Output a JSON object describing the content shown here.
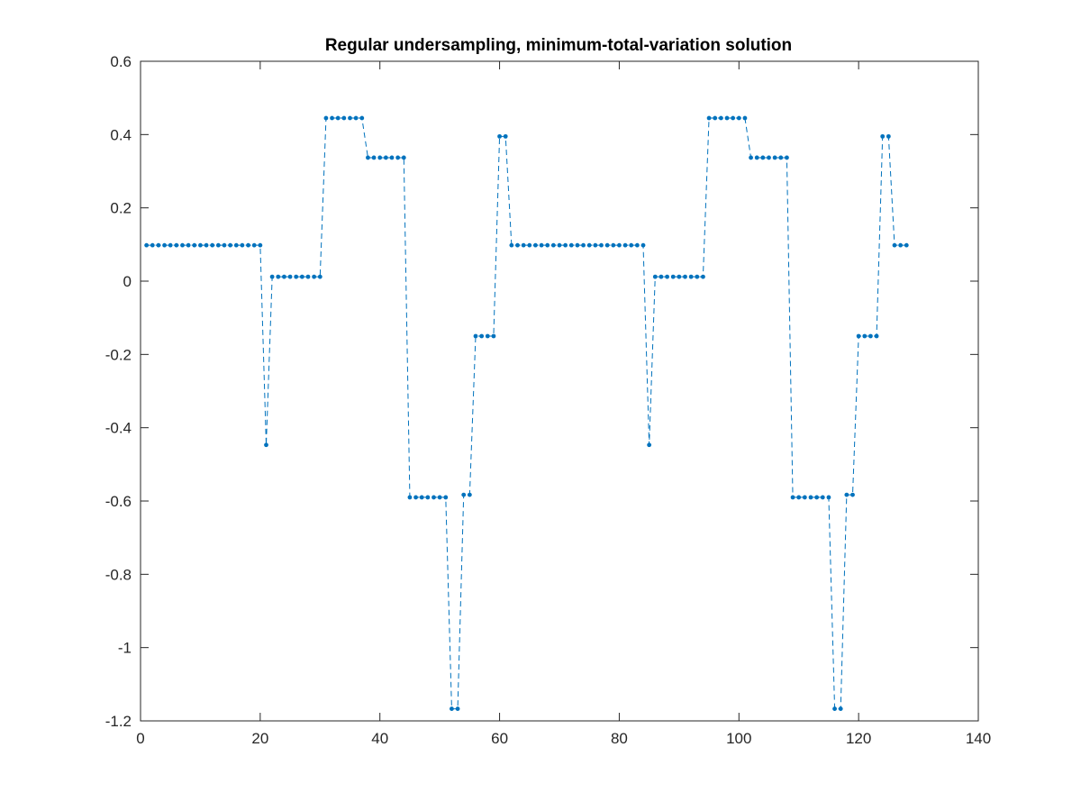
{
  "chart_data": {
    "type": "line",
    "title": "Regular undersampling, minimum-total-variation solution",
    "xlabel": "",
    "ylabel": "",
    "xlim": [
      0,
      140
    ],
    "ylim": [
      -1.2,
      0.6
    ],
    "xticks": [
      0,
      20,
      40,
      60,
      80,
      100,
      120,
      140
    ],
    "yticks": [
      -1.2,
      -1,
      -0.8,
      -0.6,
      -0.4,
      -0.2,
      0,
      0.2,
      0.4,
      0.6
    ],
    "xtick_labels": [
      "0",
      "20",
      "40",
      "60",
      "80",
      "100",
      "120",
      "140"
    ],
    "ytick_labels": [
      "-1.2",
      "-1",
      "-0.8",
      "-0.6",
      "-0.4",
      "-0.2",
      "0",
      "0.2",
      "0.4",
      "0.6"
    ],
    "grid": false,
    "line_style": "dashed",
    "marker": "dot",
    "color": "#0072BD",
    "series": [
      {
        "x": [
          1,
          2,
          3,
          4,
          5,
          6,
          7,
          8,
          9,
          10,
          11,
          12,
          13,
          14,
          15,
          16,
          17,
          18,
          19,
          20,
          21,
          22,
          23,
          24,
          25,
          26,
          27,
          28,
          29,
          30,
          31,
          32,
          33,
          34,
          35,
          36,
          37,
          38,
          39,
          40,
          41,
          42,
          43,
          44,
          45,
          46,
          47,
          48,
          49,
          50,
          51,
          52,
          53,
          54,
          55,
          56,
          57,
          58,
          59,
          60,
          61,
          62,
          63,
          64,
          65,
          66,
          67,
          68,
          69,
          70,
          71,
          72,
          73,
          74,
          75,
          76,
          77,
          78,
          79,
          80,
          81,
          82,
          83,
          84,
          85,
          86,
          87,
          88,
          89,
          90,
          91,
          92,
          93,
          94,
          95,
          96,
          97,
          98,
          99,
          100,
          101,
          102,
          103,
          104,
          105,
          106,
          107,
          108,
          109,
          110,
          111,
          112,
          113,
          114,
          115,
          116,
          117,
          118,
          119,
          120,
          121,
          122,
          123,
          124,
          125,
          126,
          127,
          128
        ],
        "y": [
          0.098,
          0.098,
          0.098,
          0.098,
          0.098,
          0.098,
          0.098,
          0.098,
          0.098,
          0.098,
          0.098,
          0.098,
          0.098,
          0.098,
          0.098,
          0.098,
          0.098,
          0.098,
          0.098,
          0.098,
          -0.447,
          0.012,
          0.012,
          0.012,
          0.012,
          0.012,
          0.012,
          0.012,
          0.012,
          0.012,
          0.445,
          0.445,
          0.445,
          0.445,
          0.445,
          0.445,
          0.445,
          0.337,
          0.337,
          0.337,
          0.337,
          0.337,
          0.337,
          0.337,
          -0.59,
          -0.59,
          -0.59,
          -0.59,
          -0.59,
          -0.59,
          -0.59,
          -1.167,
          -1.167,
          -0.583,
          -0.583,
          -0.15,
          -0.15,
          -0.15,
          -0.15,
          0.395,
          0.395,
          0.098,
          0.098,
          0.098,
          0.098,
          0.098,
          0.098,
          0.098,
          0.098,
          0.098,
          0.098,
          0.098,
          0.098,
          0.098,
          0.098,
          0.098,
          0.098,
          0.098,
          0.098,
          0.098,
          0.098,
          0.098,
          0.098,
          0.098,
          -0.447,
          0.012,
          0.012,
          0.012,
          0.012,
          0.012,
          0.012,
          0.012,
          0.012,
          0.012,
          0.445,
          0.445,
          0.445,
          0.445,
          0.445,
          0.445,
          0.445,
          0.337,
          0.337,
          0.337,
          0.337,
          0.337,
          0.337,
          0.337,
          -0.59,
          -0.59,
          -0.59,
          -0.59,
          -0.59,
          -0.59,
          -0.59,
          -1.167,
          -1.167,
          -0.583,
          -0.583,
          -0.15,
          -0.15,
          -0.15,
          -0.15,
          0.395,
          0.395,
          0.098,
          0.098,
          0.098
        ]
      }
    ]
  }
}
